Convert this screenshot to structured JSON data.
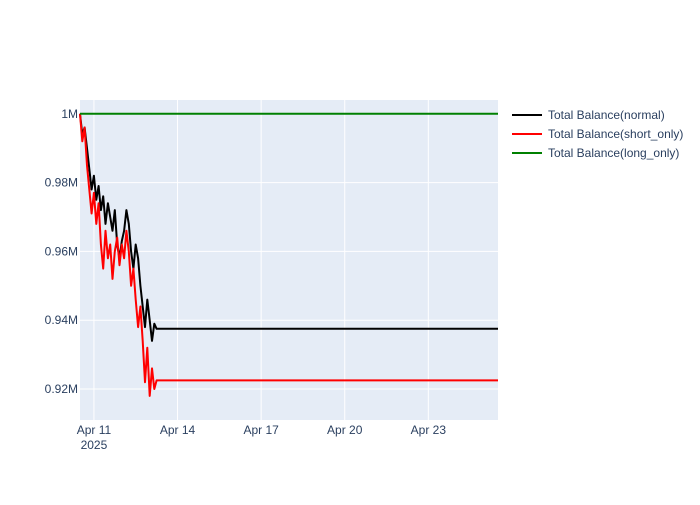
{
  "chart_data": {
    "type": "line",
    "x_axis": {
      "type": "date",
      "range": [
        "2025-04-10T12:00",
        "2025-04-25T12:00"
      ],
      "ticks": [
        {
          "value": "2025-04-11",
          "label": "Apr 11",
          "sublabel": "2025"
        },
        {
          "value": "2025-04-14",
          "label": "Apr 14",
          "sublabel": ""
        },
        {
          "value": "2025-04-17",
          "label": "Apr 17",
          "sublabel": ""
        },
        {
          "value": "2025-04-20",
          "label": "Apr 20",
          "sublabel": ""
        },
        {
          "value": "2025-04-23",
          "label": "Apr 23",
          "sublabel": ""
        }
      ]
    },
    "y_axis": {
      "range": [
        911000,
        1004000
      ],
      "ticks": [
        {
          "value": 920000,
          "label": "0.92M"
        },
        {
          "value": 940000,
          "label": "0.94M"
        },
        {
          "value": 960000,
          "label": "0.96M"
        },
        {
          "value": 980000,
          "label": "0.98M"
        },
        {
          "value": 1000000,
          "label": "1M"
        }
      ]
    },
    "grid": true,
    "legend": {
      "position": "top-right"
    },
    "series": [
      {
        "name": "Total Balance(normal)",
        "color": "#000000",
        "points": [
          [
            "2025-04-10T12:00",
            1000000
          ],
          [
            "2025-04-10T14:00",
            994000
          ],
          [
            "2025-04-10T16:00",
            996000
          ],
          [
            "2025-04-10T18:00",
            990000
          ],
          [
            "2025-04-10T20:00",
            984000
          ],
          [
            "2025-04-10T22:00",
            978000
          ],
          [
            "2025-04-11T00:00",
            982000
          ],
          [
            "2025-04-11T02:00",
            975000
          ],
          [
            "2025-04-11T04:00",
            979000
          ],
          [
            "2025-04-11T06:00",
            972000
          ],
          [
            "2025-04-11T08:00",
            976000
          ],
          [
            "2025-04-11T10:00",
            968000
          ],
          [
            "2025-04-11T12:00",
            974000
          ],
          [
            "2025-04-11T14:00",
            970000
          ],
          [
            "2025-04-11T16:00",
            966000
          ],
          [
            "2025-04-11T18:00",
            972000
          ],
          [
            "2025-04-11T20:00",
            962000
          ],
          [
            "2025-04-11T22:00",
            958000
          ],
          [
            "2025-04-12T00:00",
            963000
          ],
          [
            "2025-04-12T02:00",
            966000
          ],
          [
            "2025-04-12T04:00",
            972000
          ],
          [
            "2025-04-12T06:00",
            968000
          ],
          [
            "2025-04-12T08:00",
            960000
          ],
          [
            "2025-04-12T10:00",
            955000
          ],
          [
            "2025-04-12T12:00",
            962000
          ],
          [
            "2025-04-12T14:00",
            958000
          ],
          [
            "2025-04-12T16:00",
            950000
          ],
          [
            "2025-04-12T18:00",
            944000
          ],
          [
            "2025-04-12T20:00",
            938000
          ],
          [
            "2025-04-12T22:00",
            946000
          ],
          [
            "2025-04-13T00:00",
            940000
          ],
          [
            "2025-04-13T02:00",
            934000
          ],
          [
            "2025-04-13T04:00",
            939000
          ],
          [
            "2025-04-13T06:00",
            937500
          ],
          [
            "2025-04-25T12:00",
            937500
          ]
        ]
      },
      {
        "name": "Total Balance(short_only)",
        "color": "#ff0000",
        "points": [
          [
            "2025-04-10T12:00",
            1000000
          ],
          [
            "2025-04-10T14:00",
            992000
          ],
          [
            "2025-04-10T16:00",
            996000
          ],
          [
            "2025-04-10T18:00",
            985000
          ],
          [
            "2025-04-10T20:00",
            978000
          ],
          [
            "2025-04-10T22:00",
            971000
          ],
          [
            "2025-04-11T00:00",
            977000
          ],
          [
            "2025-04-11T02:00",
            968000
          ],
          [
            "2025-04-11T04:00",
            974000
          ],
          [
            "2025-04-11T06:00",
            962000
          ],
          [
            "2025-04-11T08:00",
            955000
          ],
          [
            "2025-04-11T10:00",
            966000
          ],
          [
            "2025-04-11T12:00",
            958000
          ],
          [
            "2025-04-11T14:00",
            962000
          ],
          [
            "2025-04-11T16:00",
            952000
          ],
          [
            "2025-04-11T18:00",
            960000
          ],
          [
            "2025-04-11T20:00",
            964000
          ],
          [
            "2025-04-11T22:00",
            956000
          ],
          [
            "2025-04-12T00:00",
            962000
          ],
          [
            "2025-04-12T02:00",
            958000
          ],
          [
            "2025-04-12T04:00",
            966000
          ],
          [
            "2025-04-12T06:00",
            960000
          ],
          [
            "2025-04-12T08:00",
            950000
          ],
          [
            "2025-04-12T10:00",
            955000
          ],
          [
            "2025-04-12T12:00",
            946000
          ],
          [
            "2025-04-12T14:00",
            938000
          ],
          [
            "2025-04-12T16:00",
            944000
          ],
          [
            "2025-04-12T18:00",
            934000
          ],
          [
            "2025-04-12T20:00",
            922000
          ],
          [
            "2025-04-12T22:00",
            932000
          ],
          [
            "2025-04-13T00:00",
            918000
          ],
          [
            "2025-04-13T02:00",
            926000
          ],
          [
            "2025-04-13T04:00",
            920000
          ],
          [
            "2025-04-13T06:00",
            922500
          ],
          [
            "2025-04-25T12:00",
            922500
          ]
        ]
      },
      {
        "name": "Total Balance(long_only)",
        "color": "#008000",
        "points": [
          [
            "2025-04-10T12:00",
            1000000
          ],
          [
            "2025-04-25T12:00",
            1000000
          ]
        ]
      }
    ]
  }
}
